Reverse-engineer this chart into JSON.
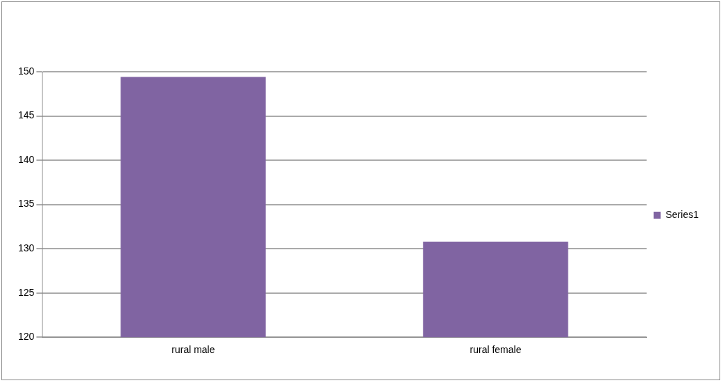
{
  "chart_data": {
    "type": "bar",
    "categories": [
      "rural male",
      "rural female"
    ],
    "series": [
      {
        "name": "Series1",
        "color": "#8064a2",
        "values": [
          149.4,
          130.8
        ]
      }
    ],
    "ylim": [
      120,
      150
    ],
    "yticks": [
      120,
      125,
      130,
      135,
      140,
      145,
      150
    ],
    "grid": "y",
    "legend": "right"
  }
}
